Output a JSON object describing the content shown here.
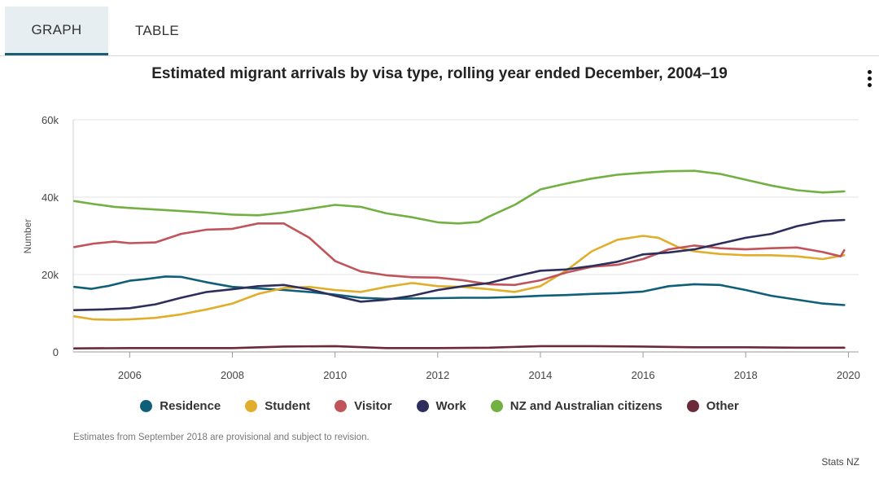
{
  "tabs": [
    {
      "label": "GRAPH",
      "active": true
    },
    {
      "label": "TABLE",
      "active": false
    }
  ],
  "menu_icon": "vertical-ellipsis-icon",
  "footnote": "Estimates from September 2018 are provisional and subject to revision.",
  "source": "Stats NZ",
  "chart_data": {
    "type": "line",
    "title": "Estimated migrant arrivals by visa type, rolling year ended December, 2004–19",
    "xlabel": "",
    "ylabel": "Number",
    "xlim": [
      2004.9,
      2020.2
    ],
    "ylim": [
      0,
      60000
    ],
    "xticks": [
      2006,
      2008,
      2010,
      2012,
      2014,
      2016,
      2018,
      2020
    ],
    "xtick_labels": [
      "2006",
      "2008",
      "2010",
      "2012",
      "2014",
      "2016",
      "2018",
      "2020"
    ],
    "yticks": [
      0,
      20000,
      40000,
      60000
    ],
    "ytick_labels": [
      "0",
      "20k",
      "40k",
      "60k"
    ],
    "grid": "horizontal",
    "legend_position": "bottom",
    "series": [
      {
        "name": "Residence",
        "color": "#0f5f78",
        "points": [
          [
            2004.92,
            16800
          ],
          [
            2005.25,
            16300
          ],
          [
            2005.6,
            17100
          ],
          [
            2006.0,
            18400
          ],
          [
            2006.3,
            18800
          ],
          [
            2006.7,
            19500
          ],
          [
            2007.0,
            19400
          ],
          [
            2007.5,
            18000
          ],
          [
            2008.0,
            16800
          ],
          [
            2008.5,
            16400
          ],
          [
            2009.0,
            16000
          ],
          [
            2009.5,
            15500
          ],
          [
            2010.0,
            14800
          ],
          [
            2010.5,
            14000
          ],
          [
            2011.0,
            13700
          ],
          [
            2011.5,
            13800
          ],
          [
            2012.0,
            13900
          ],
          [
            2012.5,
            14000
          ],
          [
            2013.0,
            14000
          ],
          [
            2013.5,
            14200
          ],
          [
            2014.0,
            14500
          ],
          [
            2014.5,
            14700
          ],
          [
            2015.0,
            15000
          ],
          [
            2015.5,
            15200
          ],
          [
            2016.0,
            15600
          ],
          [
            2016.5,
            17000
          ],
          [
            2017.0,
            17500
          ],
          [
            2017.5,
            17300
          ],
          [
            2018.0,
            16000
          ],
          [
            2018.5,
            14500
          ],
          [
            2019.0,
            13500
          ],
          [
            2019.5,
            12500
          ],
          [
            2019.92,
            12100
          ]
        ]
      },
      {
        "name": "Student",
        "color": "#e0ae2b",
        "points": [
          [
            2004.92,
            9200
          ],
          [
            2005.3,
            8400
          ],
          [
            2005.7,
            8300
          ],
          [
            2006.0,
            8400
          ],
          [
            2006.5,
            8800
          ],
          [
            2007.0,
            9700
          ],
          [
            2007.5,
            11000
          ],
          [
            2008.0,
            12500
          ],
          [
            2008.5,
            15000
          ],
          [
            2009.0,
            16500
          ],
          [
            2009.5,
            16800
          ],
          [
            2010.0,
            16000
          ],
          [
            2010.5,
            15500
          ],
          [
            2011.0,
            16800
          ],
          [
            2011.5,
            17800
          ],
          [
            2012.0,
            17000
          ],
          [
            2012.5,
            16800
          ],
          [
            2013.0,
            16200
          ],
          [
            2013.5,
            15500
          ],
          [
            2014.0,
            17000
          ],
          [
            2014.5,
            21000
          ],
          [
            2015.0,
            26000
          ],
          [
            2015.5,
            29000
          ],
          [
            2016.0,
            30000
          ],
          [
            2016.3,
            29500
          ],
          [
            2016.7,
            27000
          ],
          [
            2017.0,
            26000
          ],
          [
            2017.5,
            25300
          ],
          [
            2018.0,
            25000
          ],
          [
            2018.5,
            25000
          ],
          [
            2019.0,
            24700
          ],
          [
            2019.5,
            24000
          ],
          [
            2019.92,
            25000
          ]
        ]
      },
      {
        "name": "Visitor",
        "color": "#c0545a",
        "points": [
          [
            2004.92,
            27100
          ],
          [
            2005.3,
            28000
          ],
          [
            2005.7,
            28500
          ],
          [
            2006.0,
            28100
          ],
          [
            2006.5,
            28300
          ],
          [
            2007.0,
            30500
          ],
          [
            2007.5,
            31600
          ],
          [
            2008.0,
            31800
          ],
          [
            2008.5,
            33200
          ],
          [
            2009.0,
            33200
          ],
          [
            2009.5,
            29500
          ],
          [
            2010.0,
            23500
          ],
          [
            2010.5,
            20800
          ],
          [
            2011.0,
            19800
          ],
          [
            2011.5,
            19300
          ],
          [
            2012.0,
            19200
          ],
          [
            2012.5,
            18500
          ],
          [
            2013.0,
            17500
          ],
          [
            2013.5,
            17300
          ],
          [
            2014.0,
            18500
          ],
          [
            2014.5,
            20500
          ],
          [
            2015.0,
            22000
          ],
          [
            2015.5,
            22500
          ],
          [
            2016.0,
            24000
          ],
          [
            2016.5,
            26500
          ],
          [
            2017.0,
            27500
          ],
          [
            2017.5,
            26800
          ],
          [
            2018.0,
            26500
          ],
          [
            2018.5,
            26800
          ],
          [
            2019.0,
            27000
          ],
          [
            2019.5,
            25800
          ],
          [
            2019.85,
            24700
          ],
          [
            2019.92,
            26300
          ]
        ]
      },
      {
        "name": "Work",
        "color": "#2e2e5c",
        "points": [
          [
            2004.92,
            10800
          ],
          [
            2005.5,
            11000
          ],
          [
            2006.0,
            11300
          ],
          [
            2006.5,
            12300
          ],
          [
            2007.0,
            14000
          ],
          [
            2007.5,
            15500
          ],
          [
            2008.0,
            16200
          ],
          [
            2008.5,
            17000
          ],
          [
            2009.0,
            17300
          ],
          [
            2009.5,
            16200
          ],
          [
            2010.0,
            14500
          ],
          [
            2010.5,
            13000
          ],
          [
            2011.0,
            13500
          ],
          [
            2011.5,
            14500
          ],
          [
            2012.0,
            16000
          ],
          [
            2012.5,
            17000
          ],
          [
            2013.0,
            17800
          ],
          [
            2013.5,
            19500
          ],
          [
            2014.0,
            21000
          ],
          [
            2014.5,
            21300
          ],
          [
            2015.0,
            22200
          ],
          [
            2015.5,
            23300
          ],
          [
            2016.0,
            25200
          ],
          [
            2016.5,
            25700
          ],
          [
            2017.0,
            26500
          ],
          [
            2017.5,
            28000
          ],
          [
            2018.0,
            29500
          ],
          [
            2018.5,
            30500
          ],
          [
            2019.0,
            32500
          ],
          [
            2019.5,
            33800
          ],
          [
            2019.92,
            34100
          ]
        ]
      },
      {
        "name": "NZ and Australian citizens",
        "color": "#72b043",
        "points": [
          [
            2004.92,
            39000
          ],
          [
            2005.3,
            38200
          ],
          [
            2005.7,
            37500
          ],
          [
            2006.0,
            37200
          ],
          [
            2006.5,
            36800
          ],
          [
            2007.0,
            36400
          ],
          [
            2007.5,
            36000
          ],
          [
            2008.0,
            35500
          ],
          [
            2008.5,
            35300
          ],
          [
            2009.0,
            36000
          ],
          [
            2009.5,
            37000
          ],
          [
            2010.0,
            38000
          ],
          [
            2010.5,
            37500
          ],
          [
            2011.0,
            35800
          ],
          [
            2011.5,
            34800
          ],
          [
            2012.0,
            33500
          ],
          [
            2012.4,
            33200
          ],
          [
            2012.8,
            33600
          ],
          [
            2013.0,
            35000
          ],
          [
            2013.5,
            38000
          ],
          [
            2014.0,
            42000
          ],
          [
            2014.5,
            43500
          ],
          [
            2015.0,
            44800
          ],
          [
            2015.5,
            45800
          ],
          [
            2016.0,
            46300
          ],
          [
            2016.5,
            46700
          ],
          [
            2017.0,
            46800
          ],
          [
            2017.5,
            46000
          ],
          [
            2018.0,
            44500
          ],
          [
            2018.5,
            43000
          ],
          [
            2019.0,
            41800
          ],
          [
            2019.5,
            41200
          ],
          [
            2019.92,
            41500
          ]
        ]
      },
      {
        "name": "Other",
        "color": "#6b2a3a",
        "points": [
          [
            2004.92,
            900
          ],
          [
            2006.0,
            1000
          ],
          [
            2007.0,
            1000
          ],
          [
            2008.0,
            1000
          ],
          [
            2009.0,
            1400
          ],
          [
            2010.0,
            1500
          ],
          [
            2011.0,
            1000
          ],
          [
            2012.0,
            1000
          ],
          [
            2013.0,
            1100
          ],
          [
            2014.0,
            1500
          ],
          [
            2015.0,
            1500
          ],
          [
            2016.0,
            1400
          ],
          [
            2017.0,
            1200
          ],
          [
            2018.0,
            1200
          ],
          [
            2019.0,
            1100
          ],
          [
            2019.92,
            1100
          ]
        ]
      }
    ]
  }
}
